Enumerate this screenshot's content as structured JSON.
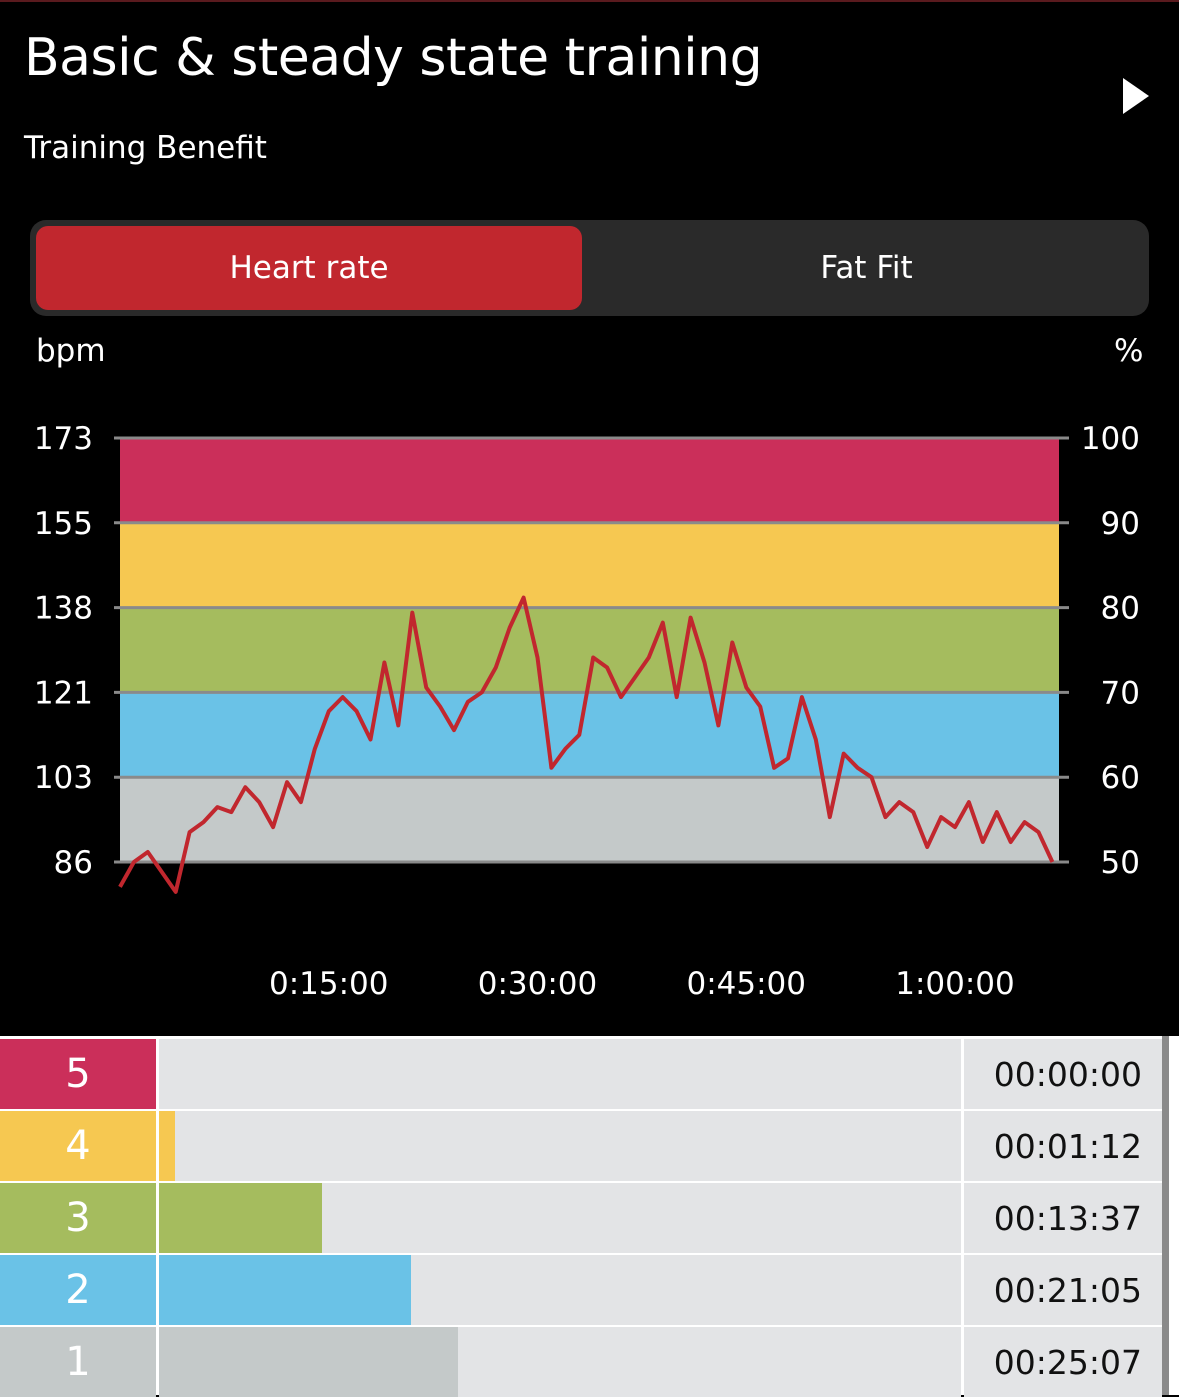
{
  "header": {
    "title": "Basic & steady state training",
    "subtitle": "Training Benefit"
  },
  "tabs": [
    {
      "label": "Heart rate",
      "active": true
    },
    {
      "label": "Fat Fit",
      "active": false
    }
  ],
  "colors": {
    "accent": "#c1272e",
    "zone5": "#cb2f5a",
    "zone4": "#f6c851",
    "zone3": "#a5bc5e",
    "zone2": "#6ac2e7",
    "zone1": "#c4c9c9",
    "line": "#c1272e"
  },
  "chart_data": {
    "type": "line",
    "ylabel_left": "bpm",
    "ylabel_right": "%",
    "y_ticks_left": [
      173,
      155,
      138,
      121,
      103,
      86
    ],
    "y_ticks_right": [
      100,
      90,
      80,
      70,
      60,
      50
    ],
    "x_ticks": [
      {
        "label": "0:15:00",
        "seconds": 900
      },
      {
        "label": "0:30:00",
        "seconds": 1800
      },
      {
        "label": "0:45:00",
        "seconds": 2700
      },
      {
        "label": "1:00:00",
        "seconds": 3600
      }
    ],
    "ylim": [
      86,
      173
    ],
    "xlim_minutes": [
      0,
      67
    ],
    "zone_bands": [
      {
        "zone": 1,
        "from": 86,
        "to": 103
      },
      {
        "zone": 2,
        "from": 103,
        "to": 121
      },
      {
        "zone": 3,
        "from": 121,
        "to": 138
      },
      {
        "zone": 4,
        "from": 138,
        "to": 155
      },
      {
        "zone": 5,
        "from": 155,
        "to": 173
      }
    ],
    "series": [
      {
        "x_minutes": [
          0,
          1,
          2,
          3,
          4,
          5,
          6,
          7,
          8,
          9,
          10,
          11,
          12,
          13,
          14,
          15,
          16,
          17,
          18,
          19,
          20,
          21,
          22,
          23,
          24,
          25,
          26,
          27,
          28,
          29,
          30,
          31,
          32,
          33,
          34,
          35,
          36,
          37,
          38,
          39,
          40,
          41,
          42,
          43,
          44,
          45,
          46,
          47,
          48,
          49,
          50,
          51,
          52,
          53,
          54,
          55,
          56,
          57,
          58,
          59,
          60,
          61,
          62,
          63,
          64,
          65,
          66,
          67
        ],
        "values": [
          81,
          86,
          88,
          84,
          80,
          92,
          94,
          97,
          96,
          101,
          98,
          93,
          102,
          98,
          109,
          117,
          120,
          117,
          111,
          127,
          114,
          137,
          122,
          118,
          113,
          119,
          121,
          126,
          134,
          140,
          128,
          105,
          109,
          112,
          128,
          126,
          120,
          124,
          128,
          135,
          120,
          136,
          127,
          114,
          131,
          122,
          118,
          105,
          107,
          120,
          111,
          95,
          108,
          105,
          103,
          95,
          98,
          96,
          89,
          95,
          93,
          98,
          90,
          96,
          90,
          94,
          92,
          86
        ]
      }
    ]
  },
  "zones": [
    {
      "number": "5",
      "time": "00:00:00",
      "fraction": 0.0
    },
    {
      "number": "4",
      "time": "00:01:12",
      "fraction": 0.0199
    },
    {
      "number": "3",
      "time": "00:13:37",
      "fraction": 0.2032
    },
    {
      "number": "2",
      "time": "00:21:05",
      "fraction": 0.3142
    },
    {
      "number": "1",
      "time": "00:25:07",
      "fraction": 0.3733
    }
  ]
}
